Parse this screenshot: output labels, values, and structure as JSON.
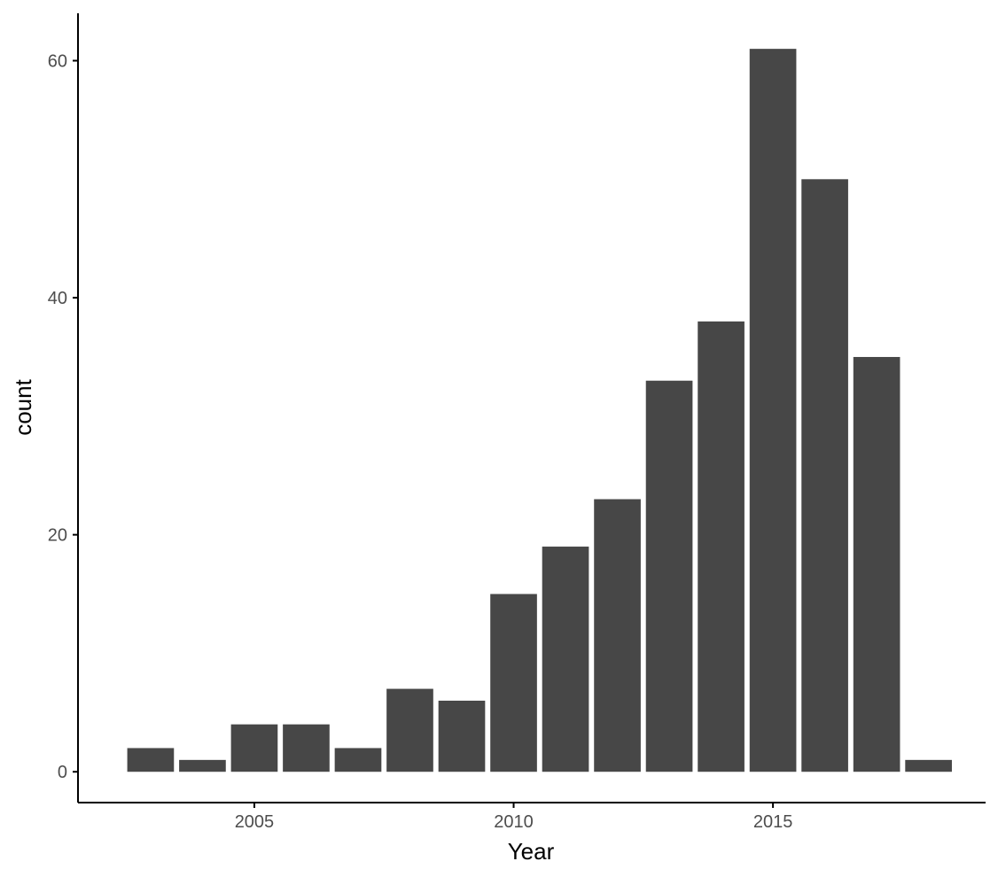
{
  "chart_data": {
    "type": "bar",
    "xlabel": "Year",
    "ylabel": "count",
    "x": [
      2003,
      2004,
      2005,
      2006,
      2007,
      2008,
      2009,
      2010,
      2011,
      2012,
      2013,
      2014,
      2015,
      2016,
      2017,
      2018
    ],
    "values": [
      2,
      1,
      4,
      4,
      2,
      7,
      6,
      15,
      19,
      23,
      33,
      38,
      61,
      50,
      35,
      1
    ],
    "xlim": [
      2001.6,
      2019.1
    ],
    "ylim": [
      -2.6,
      64
    ],
    "x_ticks": [
      2005,
      2010,
      2015
    ],
    "x_tick_labels": [
      "2005",
      "2010",
      "2015"
    ],
    "y_ticks": [
      0,
      20,
      40,
      60
    ],
    "y_tick_labels": [
      "0",
      "20",
      "40",
      "60"
    ],
    "grid": false,
    "legend": "none",
    "colors": {
      "bar": "#474747",
      "axis": "#000000",
      "tick_label": "#4d4d4d",
      "background": "#ffffff"
    }
  }
}
